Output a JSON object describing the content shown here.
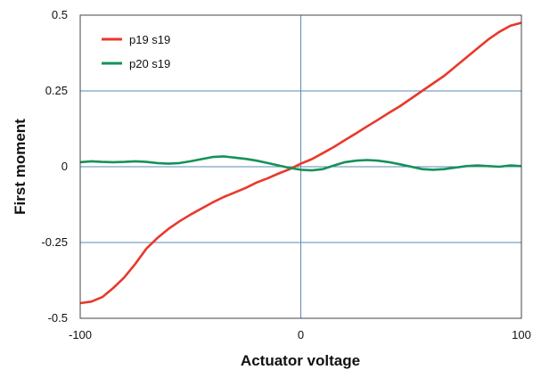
{
  "chart_data": {
    "type": "line",
    "xlabel": "Actuator voltage",
    "ylabel": "First moment",
    "xlim": [
      -100,
      100
    ],
    "ylim": [
      -0.5,
      0.5
    ],
    "x_ticks": [
      -100,
      0,
      100
    ],
    "x_tick_labels": [
      "-100",
      "0",
      "100"
    ],
    "y_ticks": [
      0.5,
      0.25,
      0,
      -0.25,
      -0.5
    ],
    "y_tick_labels": [
      "0.5",
      "0.25",
      "0",
      "-0.25",
      "-0.5"
    ],
    "grid": true,
    "legend_position": "top-left",
    "series": [
      {
        "name": "p19 s19",
        "color": "#e8392b",
        "x": [
          -100,
          -95,
          -90,
          -85,
          -80,
          -75,
          -70,
          -65,
          -60,
          -55,
          -50,
          -45,
          -40,
          -35,
          -30,
          -25,
          -20,
          -15,
          -10,
          -5,
          0,
          5,
          10,
          15,
          20,
          25,
          30,
          35,
          40,
          45,
          50,
          55,
          60,
          65,
          70,
          75,
          80,
          85,
          90,
          95,
          100
        ],
        "y": [
          -0.45,
          -0.445,
          -0.43,
          -0.4,
          -0.365,
          -0.32,
          -0.27,
          -0.235,
          -0.205,
          -0.18,
          -0.158,
          -0.138,
          -0.118,
          -0.1,
          -0.085,
          -0.07,
          -0.052,
          -0.038,
          -0.022,
          -0.008,
          0.01,
          0.025,
          0.045,
          0.065,
          0.088,
          0.11,
          0.133,
          0.155,
          0.178,
          0.2,
          0.225,
          0.25,
          0.275,
          0.3,
          0.33,
          0.36,
          0.39,
          0.42,
          0.445,
          0.465,
          0.475
        ]
      },
      {
        "name": "p20 s19",
        "color": "#16915a",
        "x": [
          -100,
          -95,
          -90,
          -85,
          -80,
          -75,
          -70,
          -65,
          -60,
          -55,
          -50,
          -45,
          -40,
          -35,
          -30,
          -25,
          -20,
          -15,
          -10,
          -5,
          0,
          5,
          10,
          15,
          20,
          25,
          30,
          35,
          40,
          45,
          50,
          55,
          60,
          65,
          70,
          75,
          80,
          85,
          90,
          95,
          100
        ],
        "y": [
          0.015,
          0.018,
          0.016,
          0.015,
          0.016,
          0.018,
          0.016,
          0.012,
          0.01,
          0.012,
          0.018,
          0.025,
          0.032,
          0.034,
          0.03,
          0.026,
          0.02,
          0.012,
          0.004,
          -0.004,
          -0.01,
          -0.012,
          -0.008,
          0.004,
          0.015,
          0.02,
          0.022,
          0.02,
          0.015,
          0.008,
          0.0,
          -0.008,
          -0.01,
          -0.008,
          -0.003,
          0.002,
          0.004,
          0.002,
          0.0,
          0.004,
          0.002
        ]
      }
    ]
  }
}
